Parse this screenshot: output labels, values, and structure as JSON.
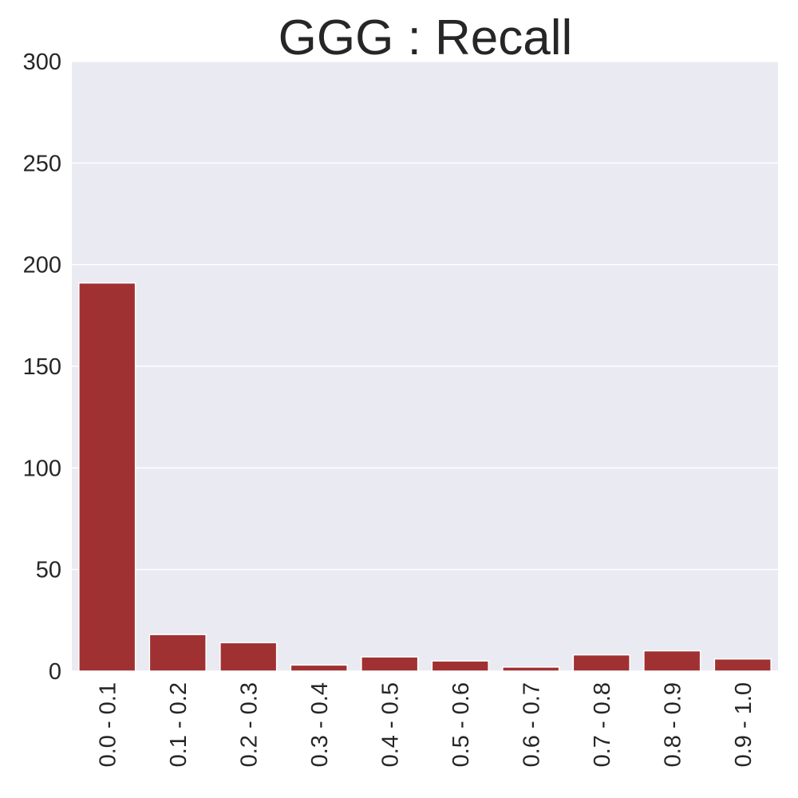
{
  "chart_data": {
    "type": "bar",
    "title": "GGG : Recall",
    "xlabel": "",
    "ylabel": "",
    "categories": [
      "0.0 - 0.1",
      "0.1 - 0.2",
      "0.2 - 0.3",
      "0.3 - 0.4",
      "0.4 - 0.5",
      "0.5 - 0.6",
      "0.6 - 0.7",
      "0.7 - 0.8",
      "0.8 - 0.9",
      "0.9 - 1.0"
    ],
    "values": [
      191,
      18,
      14,
      3,
      7,
      5,
      2,
      8,
      10,
      6
    ],
    "ylim": [
      0,
      300
    ],
    "yticks": [
      0,
      50,
      100,
      150,
      200,
      250,
      300
    ],
    "grid": true,
    "legend": "none",
    "colors": {
      "bar": "#a03133",
      "plot_background": "#eaeaf2",
      "grid": "#ffffff",
      "text": "#262626"
    }
  }
}
